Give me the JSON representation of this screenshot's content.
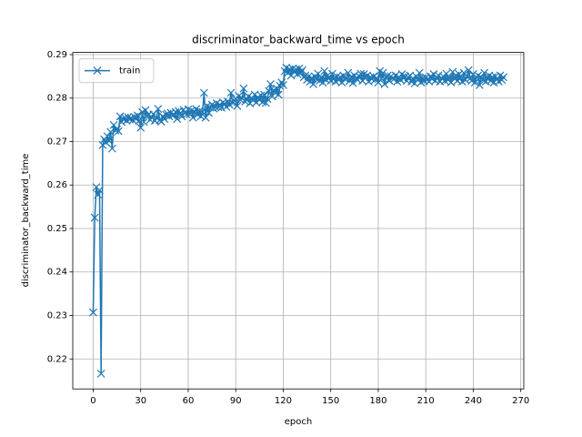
{
  "chart_data": {
    "type": "line",
    "title": "discriminator_backward_time vs epoch",
    "xlabel": "epoch",
    "ylabel": "discriminator_backward_time",
    "grid": true,
    "legend_loc": "upper left",
    "marker": "x",
    "xlim": [
      -12.9,
      271.9
    ],
    "ylim": [
      0.2131,
      0.2905
    ],
    "xticks": [
      0,
      30,
      60,
      90,
      120,
      150,
      180,
      210,
      240,
      270
    ],
    "yticks": [
      0.22,
      0.23,
      0.24,
      0.25,
      0.26,
      0.27,
      0.28,
      0.29
    ],
    "x": [
      0,
      1,
      2,
      3,
      4,
      5,
      6,
      7,
      8,
      9,
      10,
      11,
      12,
      13,
      14,
      15,
      16,
      17,
      18,
      19,
      20,
      21,
      22,
      23,
      24,
      25,
      26,
      27,
      28,
      29,
      30,
      31,
      32,
      33,
      34,
      35,
      36,
      37,
      38,
      39,
      40,
      41,
      42,
      43,
      44,
      45,
      46,
      47,
      48,
      49,
      50,
      51,
      52,
      53,
      54,
      55,
      56,
      57,
      58,
      59,
      60,
      61,
      62,
      63,
      64,
      65,
      66,
      67,
      68,
      69,
      70,
      71,
      72,
      73,
      74,
      75,
      76,
      77,
      78,
      79,
      80,
      81,
      82,
      83,
      84,
      85,
      86,
      87,
      88,
      89,
      90,
      91,
      92,
      93,
      94,
      95,
      96,
      97,
      98,
      99,
      100,
      101,
      102,
      103,
      104,
      105,
      106,
      107,
      108,
      109,
      110,
      111,
      112,
      113,
      114,
      115,
      116,
      117,
      118,
      119,
      120,
      121,
      122,
      123,
      124,
      125,
      126,
      127,
      128,
      129,
      130,
      131,
      132,
      133,
      134,
      135,
      136,
      137,
      138,
      139,
      140,
      141,
      142,
      143,
      144,
      145,
      146,
      147,
      148,
      149,
      150,
      151,
      152,
      153,
      154,
      155,
      156,
      157,
      158,
      159,
      160,
      161,
      162,
      163,
      164,
      165,
      166,
      167,
      168,
      169,
      170,
      171,
      172,
      173,
      174,
      175,
      176,
      177,
      178,
      179,
      180,
      181,
      182,
      183,
      184,
      185,
      186,
      187,
      188,
      189,
      190,
      191,
      192,
      193,
      194,
      195,
      196,
      197,
      198,
      199,
      200,
      201,
      202,
      203,
      204,
      205,
      206,
      207,
      208,
      209,
      210,
      211,
      212,
      213,
      214,
      215,
      216,
      217,
      218,
      219,
      220,
      221,
      222,
      223,
      224,
      225,
      226,
      227,
      228,
      229,
      230,
      231,
      232,
      233,
      234,
      235,
      236,
      237,
      238,
      239,
      240,
      241,
      242,
      243,
      244,
      245,
      246,
      247,
      248,
      249,
      250,
      251,
      252,
      253,
      254,
      255,
      256,
      257,
      258,
      259
    ],
    "series": [
      {
        "name": "train",
        "color": "#1f77b4",
        "values": [
          0.2307,
          0.2525,
          0.2595,
          0.2578,
          0.2588,
          0.2166,
          0.2692,
          0.2705,
          0.2698,
          0.2712,
          0.2702,
          0.2722,
          0.2684,
          0.2738,
          0.2726,
          0.2728,
          0.2724,
          0.2758,
          0.2745,
          0.2752,
          0.2755,
          0.2748,
          0.2756,
          0.2751,
          0.2754,
          0.2749,
          0.2757,
          0.2752,
          0.276,
          0.2748,
          0.2732,
          0.2768,
          0.2745,
          0.2772,
          0.2758,
          0.2762,
          0.275,
          0.2756,
          0.2763,
          0.2748,
          0.2755,
          0.2775,
          0.2749,
          0.2746,
          0.2758,
          0.2752,
          0.2762,
          0.2764,
          0.2758,
          0.2766,
          0.276,
          0.2762,
          0.2768,
          0.2752,
          0.277,
          0.2765,
          0.2758,
          0.2773,
          0.2767,
          0.2762,
          0.2774,
          0.2763,
          0.2771,
          0.2755,
          0.2768,
          0.2775,
          0.2762,
          0.277,
          0.2758,
          0.2768,
          0.2812,
          0.2755,
          0.2782,
          0.2766,
          0.2778,
          0.2785,
          0.2776,
          0.278,
          0.2788,
          0.2779,
          0.2785,
          0.2778,
          0.279,
          0.2787,
          0.278,
          0.2792,
          0.2785,
          0.2812,
          0.2789,
          0.2795,
          0.2798,
          0.2782,
          0.2805,
          0.2796,
          0.28,
          0.2822,
          0.2792,
          0.2798,
          0.2804,
          0.2788,
          0.28,
          0.2795,
          0.2808,
          0.279,
          0.2802,
          0.2796,
          0.2806,
          0.2791,
          0.2808,
          0.2789,
          0.2798,
          0.2816,
          0.2832,
          0.2804,
          0.2818,
          0.2812,
          0.2822,
          0.2808,
          0.2828,
          0.2836,
          0.283,
          0.2862,
          0.287,
          0.2858,
          0.2866,
          0.2852,
          0.2868,
          0.286,
          0.2866,
          0.2855,
          0.2868,
          0.2858,
          0.2864,
          0.2848,
          0.2852,
          0.2842,
          0.285,
          0.2838,
          0.2846,
          0.2832,
          0.285,
          0.2844,
          0.2856,
          0.284,
          0.2848,
          0.2836,
          0.2862,
          0.2842,
          0.2852,
          0.2846,
          0.284,
          0.2856,
          0.2845,
          0.2838,
          0.285,
          0.2842,
          0.2848,
          0.2836,
          0.2852,
          0.2844,
          0.2845,
          0.2858,
          0.284,
          0.2848,
          0.2835,
          0.2852,
          0.2846,
          0.2842,
          0.285,
          0.2856,
          0.284,
          0.2855,
          0.2846,
          0.2852,
          0.2838,
          0.2848,
          0.2844,
          0.285,
          0.2842,
          0.2846,
          0.2836,
          0.2862,
          0.2845,
          0.2858,
          0.2832,
          0.2848,
          0.2852,
          0.284,
          0.285,
          0.2846,
          0.2844,
          0.2852,
          0.2838,
          0.2848,
          0.2842,
          0.2855,
          0.2846,
          0.285,
          0.284,
          0.2848,
          0.2852,
          0.2838,
          0.2845,
          0.2834,
          0.285,
          0.2842,
          0.2858,
          0.2836,
          0.2846,
          0.284,
          0.2848,
          0.2842,
          0.2838,
          0.285,
          0.2844,
          0.2855,
          0.284,
          0.2848,
          0.2852,
          0.2838,
          0.2846,
          0.285,
          0.284,
          0.2856,
          0.2842,
          0.2848,
          0.2836,
          0.286,
          0.2845,
          0.2852,
          0.284,
          0.2855,
          0.2846,
          0.2838,
          0.2858,
          0.2842,
          0.285,
          0.2864,
          0.2845,
          0.284,
          0.2855,
          0.2836,
          0.2848,
          0.2852,
          0.283,
          0.2848,
          0.2842,
          0.2858,
          0.2838,
          0.2846,
          0.2852,
          0.284,
          0.2848,
          0.2836,
          0.285,
          0.2844,
          0.2838,
          0.2852,
          0.2842,
          0.2848
        ]
      }
    ]
  }
}
